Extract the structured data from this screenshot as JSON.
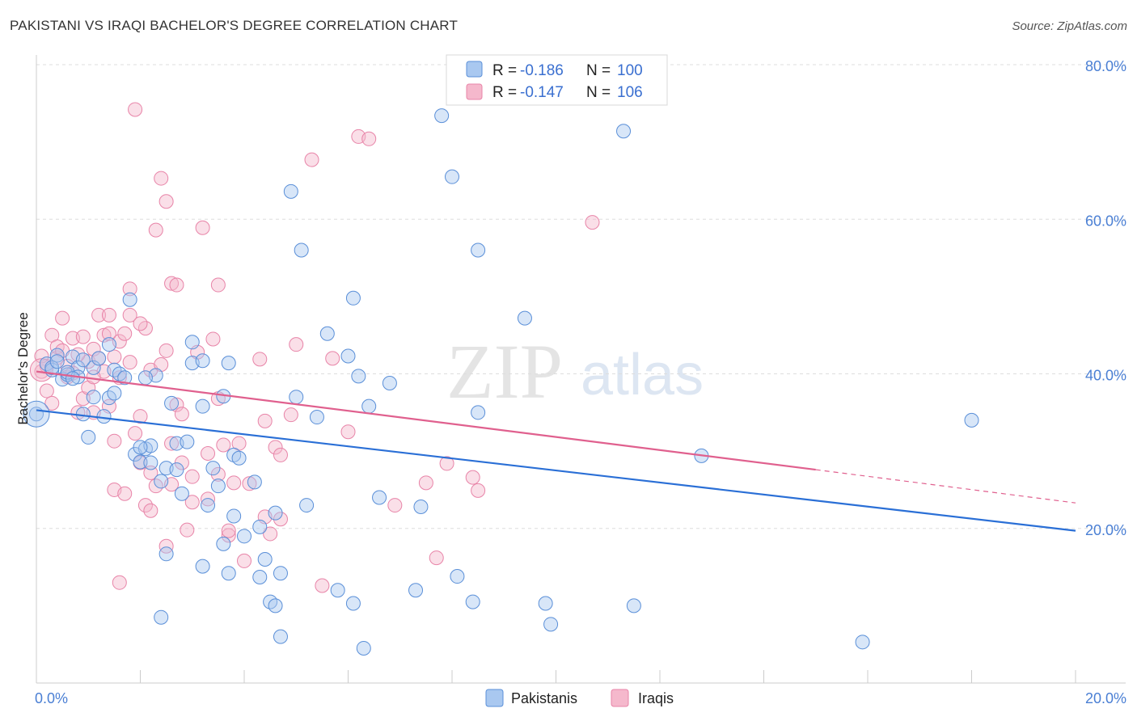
{
  "title": "PAKISTANI VS IRAQI BACHELOR'S DEGREE CORRELATION CHART",
  "source": "Source: ZipAtlas.com",
  "watermark": {
    "zip": "ZIP",
    "atlas": "atlas"
  },
  "colors": {
    "pakistani_fill": "#a9c8f0",
    "pakistani_stroke": "#5a8fd8",
    "pakistani_line": "#2a6fd6",
    "iraqi_fill": "#f5b8cc",
    "iraqi_stroke": "#e884a8",
    "iraqi_line": "#e0608e",
    "tick_text": "#4a7fd4"
  },
  "legend": {
    "pakistani": {
      "r_label": "R = ",
      "r_value": "-0.186",
      "n_label": "N = ",
      "n_value": "100"
    },
    "iraqi": {
      "r_label": "R = ",
      "r_value": "-0.147",
      "n_label": "N = ",
      "n_value": "106"
    }
  },
  "chart_data": {
    "type": "scatter",
    "title": "PAKISTANI VS IRAQI BACHELOR'S DEGREE CORRELATION CHART",
    "xlabel": "",
    "ylabel": "Bachelor's Degree",
    "xlim": [
      0,
      20
    ],
    "ylim": [
      0,
      80
    ],
    "x_tick_labels": [
      "0.0%",
      "20.0%"
    ],
    "y_ticks": [
      20,
      40,
      60,
      80
    ],
    "y_tick_labels": [
      "20.0%",
      "40.0%",
      "60.0%",
      "80.0%"
    ],
    "grid": true,
    "legend_position": "top-center",
    "series": [
      {
        "name": "Pakistanis",
        "trend": {
          "x": [
            0,
            20
          ],
          "y": [
            35.3,
            19.7
          ]
        },
        "points": [
          [
            0.0,
            34.8
          ],
          [
            0.2,
            41.3
          ],
          [
            0.3,
            40.5
          ],
          [
            0.4,
            42.4
          ],
          [
            0.5,
            39.3
          ],
          [
            0.6,
            39.9
          ],
          [
            0.7,
            42.2
          ],
          [
            0.8,
            40.8
          ],
          [
            0.9,
            34.8
          ],
          [
            1.0,
            31.8
          ],
          [
            1.1,
            37.0
          ],
          [
            1.4,
            36.9
          ],
          [
            1.4,
            43.8
          ],
          [
            1.5,
            40.5
          ],
          [
            1.5,
            37.5
          ],
          [
            1.8,
            49.6
          ],
          [
            1.9,
            29.6
          ],
          [
            2.0,
            28.6
          ],
          [
            2.1,
            30.3
          ],
          [
            2.2,
            30.7
          ],
          [
            2.3,
            39.8
          ],
          [
            2.4,
            26.1
          ],
          [
            2.4,
            8.5
          ],
          [
            2.5,
            16.7
          ],
          [
            2.5,
            27.8
          ],
          [
            2.6,
            36.2
          ],
          [
            2.7,
            27.6
          ],
          [
            2.7,
            31.0
          ],
          [
            2.8,
            24.5
          ],
          [
            2.9,
            31.2
          ],
          [
            3.0,
            44.1
          ],
          [
            3.0,
            41.4
          ],
          [
            3.2,
            41.7
          ],
          [
            3.2,
            35.8
          ],
          [
            3.2,
            15.1
          ],
          [
            3.4,
            27.8
          ],
          [
            3.5,
            25.5
          ],
          [
            3.6,
            37.1
          ],
          [
            3.6,
            18.0
          ],
          [
            3.7,
            41.4
          ],
          [
            3.7,
            14.2
          ],
          [
            3.8,
            21.6
          ],
          [
            3.8,
            29.5
          ],
          [
            3.9,
            29.1
          ],
          [
            4.0,
            19.0
          ],
          [
            4.2,
            26.0
          ],
          [
            4.3,
            20.2
          ],
          [
            4.3,
            13.7
          ],
          [
            4.4,
            16.0
          ],
          [
            4.5,
            10.5
          ],
          [
            4.6,
            10.0
          ],
          [
            4.7,
            6.0
          ],
          [
            4.7,
            14.2
          ],
          [
            4.9,
            63.6
          ],
          [
            5.0,
            37.0
          ],
          [
            5.1,
            56.0
          ],
          [
            5.2,
            23.0
          ],
          [
            5.4,
            34.4
          ],
          [
            5.6,
            45.2
          ],
          [
            5.8,
            12.0
          ],
          [
            6.0,
            42.3
          ],
          [
            6.1,
            49.8
          ],
          [
            6.1,
            10.3
          ],
          [
            6.2,
            39.7
          ],
          [
            6.3,
            4.5
          ],
          [
            6.4,
            35.8
          ],
          [
            6.8,
            38.8
          ],
          [
            7.3,
            12.0
          ],
          [
            7.4,
            22.8
          ],
          [
            7.8,
            73.4
          ],
          [
            8.0,
            65.5
          ],
          [
            8.1,
            13.8
          ],
          [
            8.4,
            10.5
          ],
          [
            8.5,
            35.0
          ],
          [
            8.5,
            56.0
          ],
          [
            9.4,
            47.2
          ],
          [
            9.8,
            10.3
          ],
          [
            9.9,
            7.6
          ],
          [
            11.3,
            71.4
          ],
          [
            11.5,
            10.0
          ],
          [
            12.8,
            29.4
          ],
          [
            15.9,
            5.3
          ],
          [
            18.0,
            34.0
          ],
          [
            0.3,
            40.8
          ],
          [
            0.6,
            40.2
          ],
          [
            0.8,
            39.6
          ],
          [
            1.1,
            40.8
          ],
          [
            1.2,
            42.0
          ],
          [
            1.6,
            40.0
          ],
          [
            2.1,
            39.5
          ],
          [
            1.3,
            34.5
          ],
          [
            2.0,
            30.5
          ],
          [
            0.4,
            41.6
          ],
          [
            0.7,
            39.4
          ],
          [
            1.7,
            39.5
          ],
          [
            2.2,
            28.5
          ],
          [
            3.3,
            23.0
          ],
          [
            4.6,
            22.0
          ],
          [
            6.6,
            24.0
          ],
          [
            0.9,
            41.8
          ]
        ]
      },
      {
        "name": "Iraqis",
        "trend": {
          "x": [
            0,
            15
          ],
          "y": [
            40.3,
            27.6
          ]
        },
        "trend_dashed": {
          "x": [
            15,
            20
          ],
          "y": [
            27.6,
            23.3
          ]
        },
        "points": [
          [
            0.1,
            40.3
          ],
          [
            0.2,
            37.8
          ],
          [
            0.3,
            45.0
          ],
          [
            0.4,
            42.1
          ],
          [
            0.5,
            47.2
          ],
          [
            0.6,
            41.0
          ],
          [
            0.7,
            44.6
          ],
          [
            0.8,
            35.0
          ],
          [
            0.9,
            44.8
          ],
          [
            0.9,
            36.8
          ],
          [
            1.0,
            41.6
          ],
          [
            1.1,
            43.2
          ],
          [
            1.1,
            35.0
          ],
          [
            1.2,
            47.6
          ],
          [
            1.3,
            40.3
          ],
          [
            1.4,
            47.6
          ],
          [
            1.4,
            35.8
          ],
          [
            1.5,
            42.2
          ],
          [
            1.5,
            31.3
          ],
          [
            1.5,
            25.0
          ],
          [
            1.6,
            44.2
          ],
          [
            1.6,
            13.0
          ],
          [
            1.7,
            45.2
          ],
          [
            1.7,
            24.5
          ],
          [
            1.8,
            51.0
          ],
          [
            1.8,
            47.6
          ],
          [
            1.9,
            74.2
          ],
          [
            1.9,
            32.3
          ],
          [
            2.0,
            28.5
          ],
          [
            2.0,
            34.5
          ],
          [
            2.1,
            45.9
          ],
          [
            2.1,
            23.0
          ],
          [
            2.2,
            27.2
          ],
          [
            2.2,
            22.3
          ],
          [
            2.3,
            58.6
          ],
          [
            2.3,
            25.5
          ],
          [
            2.4,
            65.3
          ],
          [
            2.5,
            62.3
          ],
          [
            2.5,
            43.0
          ],
          [
            2.5,
            17.7
          ],
          [
            2.6,
            51.7
          ],
          [
            2.6,
            31.0
          ],
          [
            2.6,
            25.7
          ],
          [
            2.7,
            51.5
          ],
          [
            2.7,
            36.0
          ],
          [
            2.8,
            28.5
          ],
          [
            2.9,
            19.8
          ],
          [
            3.0,
            26.7
          ],
          [
            3.0,
            23.4
          ],
          [
            3.1,
            42.8
          ],
          [
            3.2,
            58.9
          ],
          [
            3.3,
            23.8
          ],
          [
            3.3,
            29.7
          ],
          [
            3.5,
            51.5
          ],
          [
            3.5,
            36.8
          ],
          [
            3.5,
            27.0
          ],
          [
            3.6,
            30.8
          ],
          [
            3.7,
            19.1
          ],
          [
            3.7,
            19.7
          ],
          [
            3.8,
            25.9
          ],
          [
            3.9,
            31.0
          ],
          [
            4.0,
            15.8
          ],
          [
            4.1,
            25.8
          ],
          [
            4.3,
            41.9
          ],
          [
            4.4,
            33.9
          ],
          [
            4.4,
            21.5
          ],
          [
            4.5,
            19.3
          ],
          [
            4.6,
            30.5
          ],
          [
            4.7,
            29.5
          ],
          [
            4.7,
            21.2
          ],
          [
            4.9,
            34.7
          ],
          [
            5.0,
            43.8
          ],
          [
            5.3,
            67.7
          ],
          [
            5.5,
            12.6
          ],
          [
            5.7,
            42.0
          ],
          [
            6.0,
            32.5
          ],
          [
            6.2,
            70.7
          ],
          [
            6.4,
            70.4
          ],
          [
            6.9,
            23.0
          ],
          [
            7.5,
            25.9
          ],
          [
            7.7,
            16.2
          ],
          [
            7.9,
            28.4
          ],
          [
            8.4,
            26.6
          ],
          [
            8.5,
            24.9
          ],
          [
            10.7,
            59.6
          ],
          [
            0.2,
            41.0
          ],
          [
            0.4,
            43.5
          ],
          [
            0.6,
            39.6
          ],
          [
            0.8,
            42.5
          ],
          [
            1.0,
            38.2
          ],
          [
            1.2,
            42.0
          ],
          [
            1.3,
            45.0
          ],
          [
            1.6,
            39.5
          ],
          [
            1.8,
            41.5
          ],
          [
            2.0,
            46.5
          ],
          [
            2.2,
            40.5
          ],
          [
            0.3,
            36.2
          ],
          [
            0.5,
            43.0
          ],
          [
            0.7,
            40.1
          ],
          [
            1.1,
            39.6
          ],
          [
            1.4,
            45.2
          ],
          [
            2.4,
            41.2
          ],
          [
            2.8,
            34.8
          ],
          [
            3.4,
            44.5
          ],
          [
            0.1,
            42.3
          ]
        ]
      }
    ]
  },
  "bottom_legend": {
    "pakistanis": "Pakistanis",
    "iraqis": "Iraqis"
  }
}
